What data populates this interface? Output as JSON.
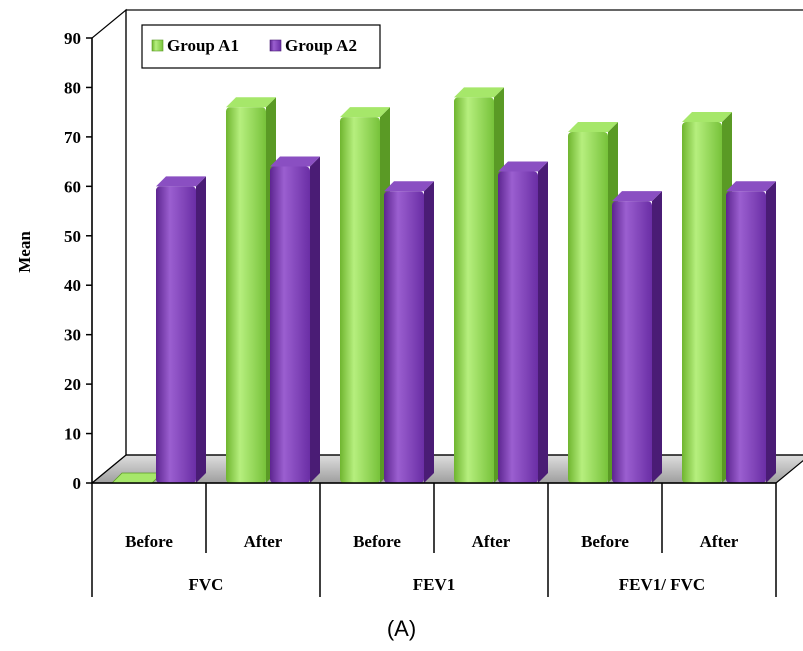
{
  "chart_data": {
    "type": "bar",
    "categories": [
      "Before",
      "After",
      "Before",
      "After",
      "Before",
      "After"
    ],
    "groups": [
      "FVC",
      "FEV1",
      "FEV1/ FVC"
    ],
    "series": [
      {
        "name": "Group A1",
        "values": [
          0,
          76,
          74,
          78,
          71,
          73
        ],
        "color": "#8fd14f"
      },
      {
        "name": "Group A2",
        "values": [
          60,
          64,
          59,
          63,
          57,
          59
        ],
        "color": "#7030a0"
      }
    ],
    "ylabel": "Mean",
    "ylim": [
      0,
      90
    ],
    "yticks": [
      "0",
      "10",
      "20",
      "30",
      "40",
      "50",
      "60",
      "70",
      "80",
      "90"
    ],
    "legend_position": "top-left",
    "style": "3d"
  },
  "caption": "(A)"
}
